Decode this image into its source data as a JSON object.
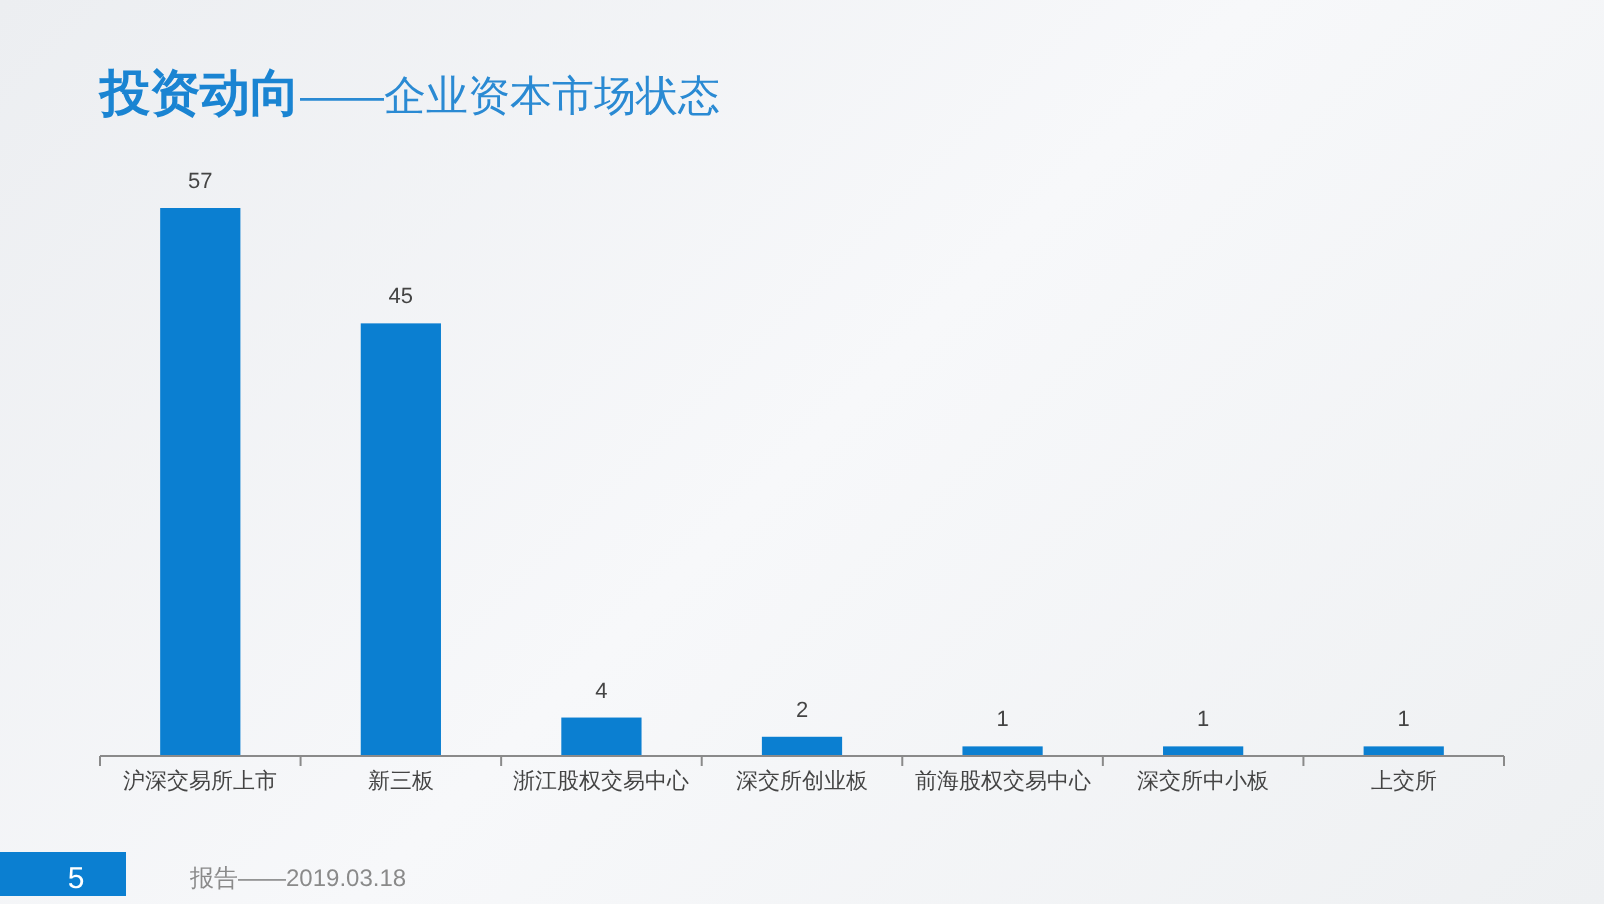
{
  "chart_data": {
    "type": "bar",
    "title": "投资动向",
    "subtitle": "——企业资本市场状态",
    "categories": [
      "沪深交易所上市",
      "新三板",
      "浙江股权交易中心",
      "深交所创业板",
      "前海股权交易中心",
      "深交所中小板",
      "上交所"
    ],
    "values": [
      57,
      45,
      4,
      2,
      1,
      1,
      1
    ],
    "color": "#0b7fd1",
    "data_labels": true,
    "annotations": [
      "5",
      "报告——2019.03.18"
    ]
  }
}
